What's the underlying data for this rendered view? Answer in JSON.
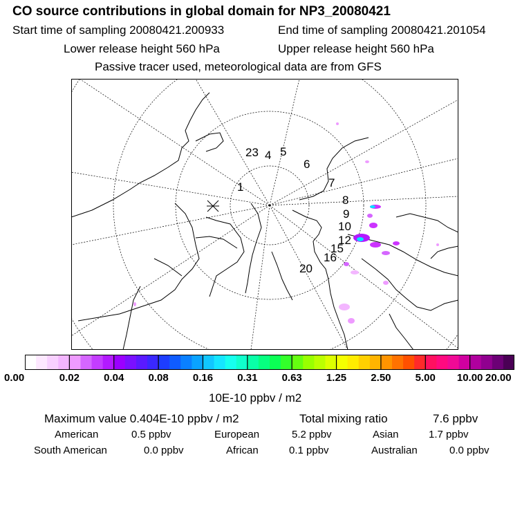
{
  "header": {
    "title": "CO  source contributions in global domain for NP3_20080421",
    "start_time": "Start time of sampling 20080421.200933",
    "end_time": "End time of sampling 20080421.201054",
    "lower_release": "Lower release height  560 hPa",
    "upper_release": "Upper release height  560 hPa",
    "tracer_note": "Passive tracer used, meteorological data are from GFS"
  },
  "map": {
    "track_labels": [
      "1",
      "23",
      "4",
      "5",
      "6",
      "7",
      "8",
      "9",
      "10",
      "12",
      "15",
      "16",
      "20"
    ],
    "colors": {
      "coast": "#000000",
      "grid": "#000000",
      "plume_magenta": "#cc33ff",
      "plume_cyan": "#00e5ff",
      "plume_pink": "#ff99ff"
    }
  },
  "colorbar": {
    "colors": [
      "#ffffff",
      "#fde8ff",
      "#f8d0ff",
      "#f3b6ff",
      "#ee9bff",
      "#d566ff",
      "#c43dff",
      "#b31aff",
      "#9b00ff",
      "#7a10ff",
      "#5a1aff",
      "#3a28ff",
      "#1d3dff",
      "#0f5cff",
      "#0a80ff",
      "#0aa3ff",
      "#11c6ff",
      "#15e5ff",
      "#16ffee",
      "#10ffcc",
      "#09ffa8",
      "#06ff80",
      "#0bff55",
      "#33ff2a",
      "#66ff10",
      "#99ff00",
      "#bbff00",
      "#ddff00",
      "#f5ff00",
      "#ffec00",
      "#ffd000",
      "#ffb400",
      "#ff9400",
      "#ff7200",
      "#ff5000",
      "#ff2a2a",
      "#ff1060",
      "#ff0a80",
      "#f00a96",
      "#d000a0",
      "#b0009e",
      "#90008f",
      "#6c0076",
      "#4a0055"
    ],
    "tick_labels": [
      "0.00",
      "0.02",
      "0.04",
      "0.08",
      "0.16",
      "0.31",
      "0.63",
      "1.25",
      "2.50",
      "5.00",
      "10.00",
      "20.00"
    ],
    "units": "10E-10 ppbv / m2"
  },
  "summary": {
    "max_value": "Maximum value  0.404E-10 ppbv / m2",
    "total_mixing": "Total mixing ratio",
    "total_value": "7.6 ppbv"
  },
  "regions": [
    {
      "name": "American",
      "value": "0.5 ppbv"
    },
    {
      "name": "European",
      "value": "5.2 ppbv"
    },
    {
      "name": "Asian",
      "value": "1.7 ppbv"
    },
    {
      "name": "South American",
      "value": "0.0 ppbv"
    },
    {
      "name": "African",
      "value": "0.1 ppbv"
    },
    {
      "name": "Australian",
      "value": "0.0 ppbv"
    }
  ]
}
